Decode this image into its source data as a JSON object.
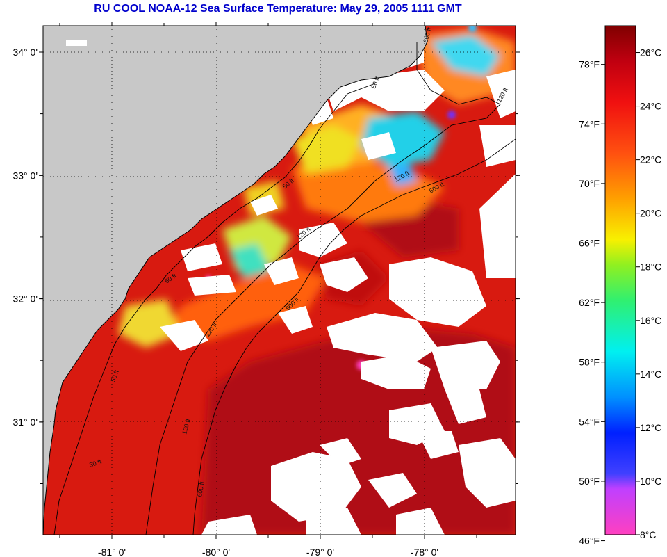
{
  "title": "RU COOL  NOAA-12  Sea Surface Temperature:  May 29, 2005 1111 GMT",
  "map": {
    "lat_ticks": [
      {
        "value": 34,
        "label": "34° 0'"
      },
      {
        "value": 33,
        "label": "33° 0'"
      },
      {
        "value": 32,
        "label": "32° 0'"
      },
      {
        "value": 31,
        "label": "31° 0'"
      }
    ],
    "lon_ticks": [
      {
        "value": -81,
        "label": "-81° 0'"
      },
      {
        "value": -80,
        "label": "-80° 0'"
      },
      {
        "value": -79,
        "label": "-79° 0'"
      },
      {
        "value": -78,
        "label": "-78° 0'"
      }
    ],
    "contour_labels": [
      "50 ft",
      "120 ft",
      "600 ft",
      "50 ft",
      "120 ft",
      "600 ft",
      "50 ft",
      "120 ft",
      "600 ft",
      "50 ft",
      "120 ft",
      "600 ft",
      "50 ft",
      "120 ft"
    ],
    "colors": {
      "land": "#c8c8c8",
      "cloud": "#ffffff",
      "warm": "#d01010",
      "hot": "#a00010",
      "orange": "#ff6a10",
      "yellow": "#f0e020",
      "cyan": "#00c8e8",
      "green": "#40e080"
    }
  },
  "colorbar": {
    "fahrenheit": [
      "78°F",
      "74°F",
      "70°F",
      "66°F",
      "62°F",
      "58°F",
      "54°F",
      "50°F",
      "46°F"
    ],
    "celsius": [
      "26°C",
      "24°C",
      "22°C",
      "20°C",
      "18°C",
      "16°C",
      "14°C",
      "12°C",
      "10°C",
      "8°C"
    ],
    "range_celsius": [
      8,
      27
    ]
  }
}
